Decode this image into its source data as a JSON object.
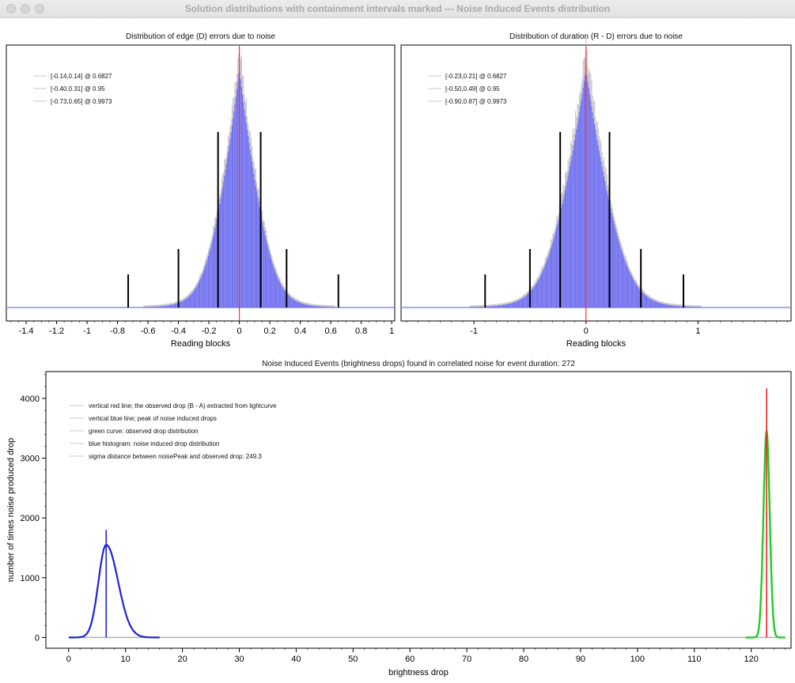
{
  "window": {
    "title": "Solution distributions with containment intervals marked --- Noise Induced Events distribution"
  },
  "charts": {
    "edge": {
      "type": "bar",
      "title": "Distribution of edge (D) errors due to noise",
      "xlabel": "Reading blocks",
      "xlim": [
        -1.53,
        1.02
      ],
      "xticks": [
        -1.4,
        -1.2,
        -1,
        -0.8,
        -0.6,
        -0.4,
        -0.2,
        0,
        0.2,
        0.4,
        0.6,
        0.8,
        1
      ],
      "xtick_labels": [
        "-1.4",
        "-1.2",
        "-1",
        "-0.8",
        "-0.6",
        "-0.4",
        "-0.2",
        "0",
        "0.2",
        "0.4",
        "0.6",
        "0.8",
        "1"
      ],
      "legend": [
        "[-0.14,0.14] @ 0.6827",
        "[-0.40,0.31] @ 0.95",
        "[-0.73,0.65] @ 0.9973"
      ],
      "intervals": [
        {
          "left": -0.14,
          "right": 0.14,
          "level": 0.6827
        },
        {
          "left": -0.4,
          "right": 0.31,
          "level": 0.95
        },
        {
          "left": -0.73,
          "right": 0.65,
          "level": 0.9973
        }
      ],
      "sigma": 0.14,
      "observed_line": 0
    },
    "duration": {
      "type": "bar",
      "title": "Distribution of duration (R - D) errors due to noise",
      "xlabel": "Reading blocks",
      "xlim": [
        -1.65,
        1.83
      ],
      "xticks": [
        -1,
        0,
        1
      ],
      "xtick_labels": [
        "-1",
        "0",
        "1"
      ],
      "legend": [
        "[-0.23,0.21] @ 0.6827",
        "[-0.50,0.49] @ 0.95",
        "[-0.90,0.87] @ 0.9973"
      ],
      "intervals": [
        {
          "left": -0.23,
          "right": 0.21,
          "level": 0.6827
        },
        {
          "left": -0.5,
          "right": 0.49,
          "level": 0.95
        },
        {
          "left": -0.9,
          "right": 0.87,
          "level": 0.9973
        }
      ],
      "sigma": 0.23,
      "observed_line": 0
    },
    "events": {
      "type": "line",
      "title": "Noise Induced Events (brightness drops) found in correlated noise for event duration: 272",
      "xlabel": "brightness drop",
      "ylabel": "number of times noise produced drop",
      "xlim": [
        -4,
        127
      ],
      "ylim": [
        -180,
        4450
      ],
      "xticks": [
        0,
        10,
        20,
        30,
        40,
        50,
        60,
        70,
        80,
        90,
        100,
        110,
        120
      ],
      "xtick_labels": [
        "0",
        "10",
        "20",
        "30",
        "40",
        "50",
        "60",
        "70",
        "80",
        "90",
        "100",
        "110",
        "120"
      ],
      "yticks": [
        0,
        1000,
        2000,
        3000,
        4000
      ],
      "ytick_labels": [
        "0",
        "1000",
        "2000",
        "3000",
        "4000"
      ],
      "legend": [
        "vertical red line; the observed drop (B - A) extracted from lightcurve",
        "vertical blue line; peak of noise induced drops",
        "green curve: observed drop distribution",
        "blue histogram: noise induced drop distribution",
        "sigma distance between noisePeak and observed drop: 249.3"
      ],
      "noise_peak": {
        "x": 6.6,
        "y": 1800,
        "curve_peak": 1550,
        "sigma": 1.35
      },
      "observed": {
        "x": 122.7,
        "y": 4170,
        "curve_peak": 3450,
        "sigma": 0.55
      },
      "colors": {
        "noise": "#1f22d8",
        "observed_curve": "#22cc22",
        "observed_line": "#ee2222"
      }
    }
  }
}
